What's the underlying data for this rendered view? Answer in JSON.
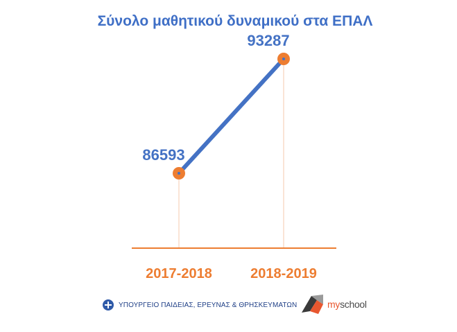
{
  "chart_data": {
    "type": "line",
    "title": "Σύνολο μαθητικού δυναμικού στα ΕΠΑΛ",
    "categories": [
      "2017-2018",
      "2018-2019"
    ],
    "series": [
      {
        "values": [
          86593,
          93287
        ]
      }
    ],
    "data_labels": [
      "86593",
      "93287"
    ],
    "grid": false,
    "colors": {
      "line": "#4472c4",
      "marker": "#ed7d31",
      "axis": "#ed7d31",
      "title": "#3f6fc6",
      "tick_labels": "#ed7d31"
    }
  },
  "footer": {
    "ministry": "ΥΠΟΥΡΓΕΙΟ ΠΑΙΔΕΙΑΣ, ΕΡΕΥΝΑΣ & ΘΡΗΣΚΕΥΜΑΤΩΝ",
    "myschool_my": "my",
    "myschool_school": "school",
    "ministry_icon": "ministry-seal-icon",
    "myschool_icon": "myschool-logo-icon"
  }
}
